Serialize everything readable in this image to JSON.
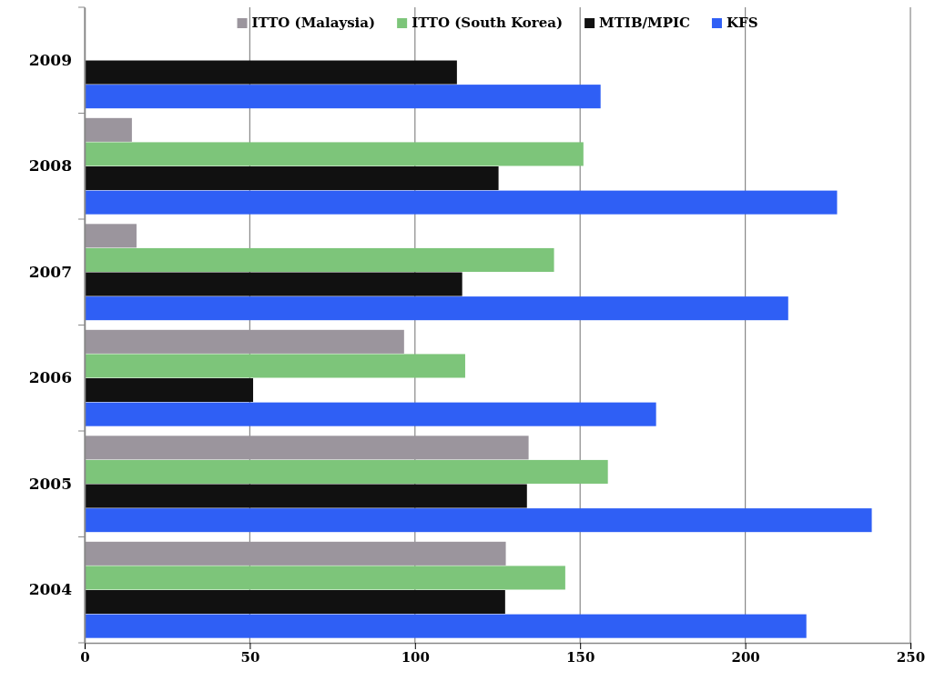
{
  "chart_data": {
    "type": "bar",
    "orientation": "horizontal",
    "categories": [
      "2009",
      "2008",
      "2007",
      "2006",
      "2005",
      "2004"
    ],
    "series": [
      {
        "name": "ITTO (Malaysia)",
        "color": "#9b959d",
        "values": [
          null,
          14.3,
          15.7,
          96.7,
          134.4,
          127.5
        ]
      },
      {
        "name": "ITTO (South Korea)",
        "color": "#7dc57a",
        "values": [
          null,
          151,
          142.1,
          115.2,
          158.4,
          145.5
        ]
      },
      {
        "name": "MTIB/MPIC",
        "color": "#111111",
        "values": [
          112.7,
          125.3,
          114.3,
          51,
          133.9,
          127.3
        ]
      },
      {
        "name": "KFS",
        "color": "#2f5ff5",
        "values": [
          156.2,
          227.8,
          213,
          173,
          238.3,
          218.5
        ]
      }
    ],
    "xlim": [
      0,
      250
    ],
    "xticks": [
      0,
      50,
      100,
      150,
      200,
      250
    ],
    "grid": "x",
    "legend": "top"
  }
}
